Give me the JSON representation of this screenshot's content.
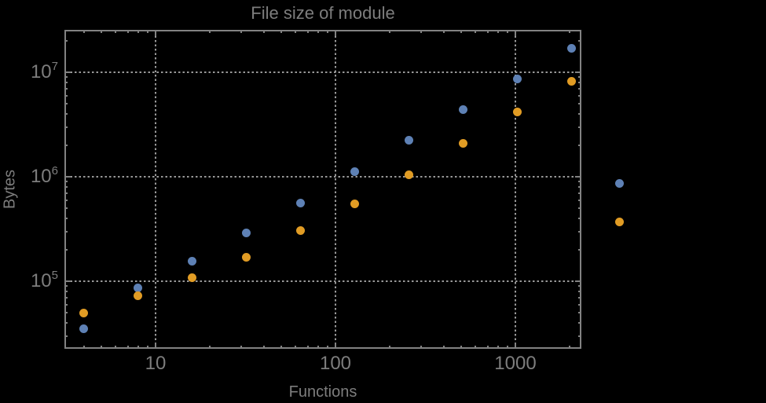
{
  "title": "File size of module",
  "x_axis": {
    "label": "Functions",
    "scale": "log",
    "tick_values": [
      10,
      100,
      1000
    ],
    "tick_labels": [
      "10",
      "100",
      "1000"
    ]
  },
  "y_axis": {
    "label": "Bytes",
    "scale": "log",
    "tick_values": [
      100000,
      1000000,
      10000000
    ],
    "tick_labels": [
      {
        "base": "10",
        "exp": "5"
      },
      {
        "base": "10",
        "exp": "6"
      },
      {
        "base": "10",
        "exp": "7"
      }
    ]
  },
  "chart_data": {
    "type": "scatter",
    "title": "File size of module",
    "xlabel": "Functions",
    "ylabel": "Bytes",
    "x_scale": "log",
    "y_scale": "log",
    "xlim": [
      3.12,
      2326
    ],
    "ylim": [
      22600,
      25500000
    ],
    "grid": "dotted",
    "legend": "none",
    "x": [
      4,
      8,
      16,
      32,
      64,
      128,
      256,
      512,
      1024,
      2048,
      3800
    ],
    "series": [
      {
        "name": "series-blue",
        "color": "#5E81B5",
        "values": [
          35000,
          87000,
          155000,
          290000,
          560000,
          1110000,
          2220000,
          4430000,
          8700000,
          17100000,
          860000
        ]
      },
      {
        "name": "series-orange",
        "color": "#E19C24",
        "values": [
          50000,
          72000,
          109000,
          171000,
          303000,
          546000,
          1050000,
          2070000,
          4140000,
          8260000,
          372000
        ]
      }
    ]
  },
  "colors": {
    "background": "#000000",
    "frame": "#828282",
    "gridline": "#989898",
    "text": "#7d7d7d",
    "series_blue": "#5E81B5",
    "series_orange": "#E19C24"
  }
}
